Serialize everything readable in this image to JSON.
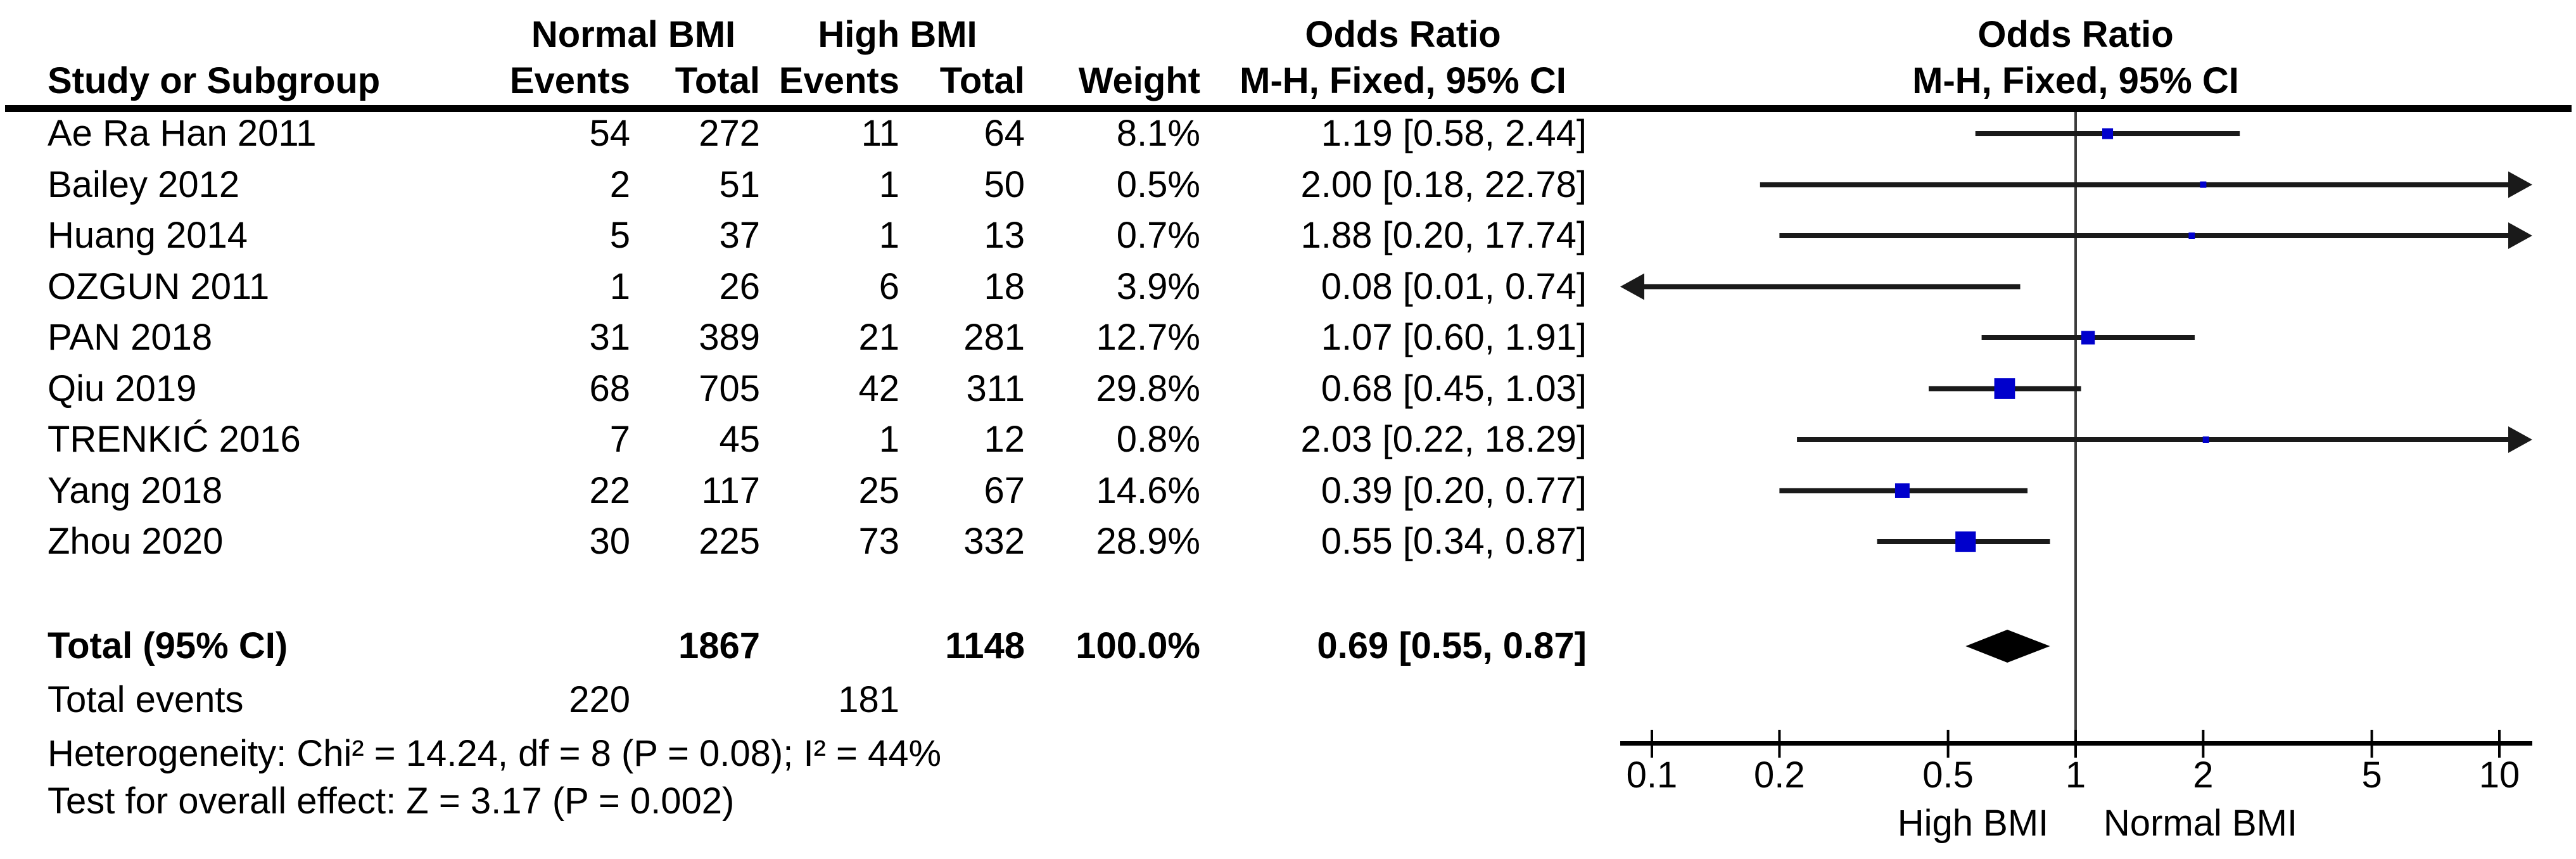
{
  "title_row": {
    "group_normal": "Normal BMI",
    "group_high": "High BMI",
    "or_column": "Odds Ratio",
    "or_plot": "Odds Ratio"
  },
  "header_row": {
    "study": "Study or Subgroup",
    "events_normal": "Events",
    "total_normal": "Total",
    "events_high": "Events",
    "total_high": "Total",
    "weight": "Weight",
    "method": "M-H, Fixed, 95% CI",
    "method_plot": "M-H, Fixed, 95% CI"
  },
  "totals": {
    "label": "Total (95% CI)",
    "total_normal": "1867",
    "total_high": "1148",
    "weight": "100.0%",
    "or_ci": "0.69 [0.55, 0.87]",
    "est": 0.69,
    "lo": 0.55,
    "hi": 0.87
  },
  "total_events": {
    "label": "Total events",
    "events_normal": "220",
    "events_high": "181"
  },
  "heterogeneity": "Heterogeneity: Chi² = 14.24, df = 8 (P = 0.08); I² = 44%",
  "overall_effect": "Test for overall effect: Z = 3.17 (P = 0.002)",
  "colors": {
    "marker_blue": "#0000CC",
    "line_black": "#1a1a1a",
    "axis_black": "#000000",
    "vline_gray": "#3c3c3c",
    "diamond_black": "#000000"
  },
  "chart_data": {
    "type": "scatter",
    "variant": "forest-plot",
    "title": "Odds Ratio",
    "effect_measure": "M-H, Fixed, 95% CI",
    "x_scale": "log10",
    "xlim": [
      0.1,
      10
    ],
    "x_ticks": [
      0.1,
      0.2,
      0.5,
      1,
      2,
      5,
      10
    ],
    "x_tick_labels": [
      "0.1",
      "0.2",
      "0.5",
      "1",
      "2",
      "5",
      "10"
    ],
    "axis_label_left": "High BMI",
    "axis_label_right": "Normal BMI",
    "studies": [
      {
        "name": "Ae Ra Han 2011",
        "events_normal": "54",
        "total_normal": "272",
        "events_high": "11",
        "total_high": "64",
        "weight": "8.1%",
        "or_ci": "1.19 [0.58, 2.44]",
        "est": 1.19,
        "lo": 0.58,
        "hi": 2.44,
        "weight_pct": 8.1
      },
      {
        "name": "Bailey 2012",
        "events_normal": "2",
        "total_normal": "51",
        "events_high": "1",
        "total_high": "50",
        "weight": "0.5%",
        "or_ci": "2.00 [0.18, 22.78]",
        "est": 2.0,
        "lo": 0.18,
        "hi": 22.78,
        "weight_pct": 0.5
      },
      {
        "name": "Huang 2014",
        "events_normal": "5",
        "total_normal": "37",
        "events_high": "1",
        "total_high": "13",
        "weight": "0.7%",
        "or_ci": "1.88 [0.20, 17.74]",
        "est": 1.88,
        "lo": 0.2,
        "hi": 17.74,
        "weight_pct": 0.7
      },
      {
        "name": "OZGUN 2011",
        "events_normal": "1",
        "total_normal": "26",
        "events_high": "6",
        "total_high": "18",
        "weight": "3.9%",
        "or_ci": "0.08 [0.01, 0.74]",
        "est": 0.08,
        "lo": 0.01,
        "hi": 0.74,
        "weight_pct": 3.9
      },
      {
        "name": "PAN 2018",
        "events_normal": "31",
        "total_normal": "389",
        "events_high": "21",
        "total_high": "281",
        "weight": "12.7%",
        "or_ci": "1.07 [0.60, 1.91]",
        "est": 1.07,
        "lo": 0.6,
        "hi": 1.91,
        "weight_pct": 12.7
      },
      {
        "name": "Qiu 2019",
        "events_normal": "68",
        "total_normal": "705",
        "events_high": "42",
        "total_high": "311",
        "weight": "29.8%",
        "or_ci": "0.68 [0.45, 1.03]",
        "est": 0.68,
        "lo": 0.45,
        "hi": 1.03,
        "weight_pct": 29.8
      },
      {
        "name": "TRENKIĆ 2016",
        "events_normal": "7",
        "total_normal": "45",
        "events_high": "1",
        "total_high": "12",
        "weight": "0.8%",
        "or_ci": "2.03 [0.22, 18.29]",
        "est": 2.03,
        "lo": 0.22,
        "hi": 18.29,
        "weight_pct": 0.8
      },
      {
        "name": "Yang 2018",
        "events_normal": "22",
        "total_normal": "117",
        "events_high": "25",
        "total_high": "67",
        "weight": "14.6%",
        "or_ci": "0.39 [0.20, 0.77]",
        "est": 0.39,
        "lo": 0.2,
        "hi": 0.77,
        "weight_pct": 14.6
      },
      {
        "name": "Zhou 2020",
        "events_normal": "30",
        "total_normal": "225",
        "events_high": "73",
        "total_high": "332",
        "weight": "28.9%",
        "or_ci": "0.55 [0.34, 0.87]",
        "est": 0.55,
        "lo": 0.34,
        "hi": 0.87,
        "weight_pct": 28.9
      }
    ],
    "total": {
      "label": "Total (95% CI)",
      "est": 0.69,
      "lo": 0.55,
      "hi": 0.87,
      "or_ci": "0.69 [0.55, 0.87]",
      "weight": "100.0%"
    }
  }
}
